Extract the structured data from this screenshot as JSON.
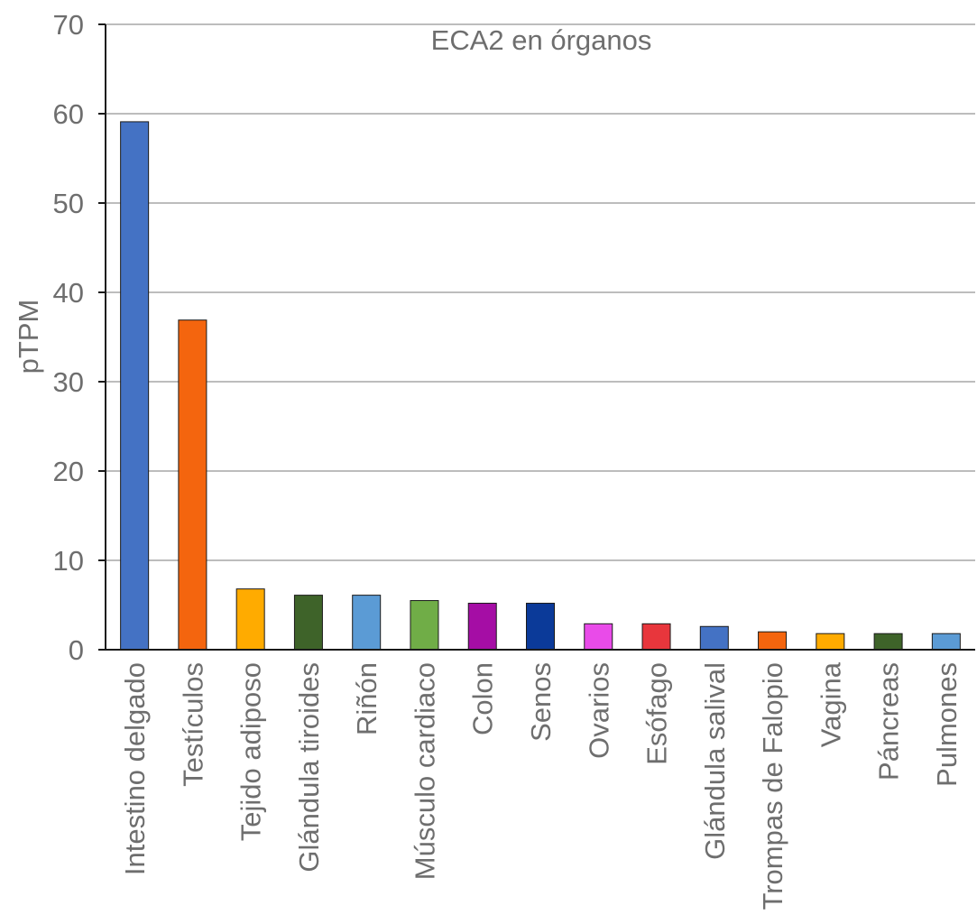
{
  "chart_data": {
    "type": "bar",
    "title": "ECA2 en órganos",
    "xlabel": "",
    "ylabel": "pTPM",
    "ylim": [
      0,
      70
    ],
    "yticks": [
      0,
      10,
      20,
      30,
      40,
      50,
      60,
      70
    ],
    "grid": true,
    "legend": "none",
    "categories": [
      "Intestino delgado",
      "Testículos",
      "Tejido adiposo",
      "Glándula tiroides",
      "Riñón",
      "Músculo cardiaco",
      "Colon",
      "Senos",
      "Ovarios",
      "Esófago",
      "Glándula salival",
      "Trompas de Falopio",
      "Vagina",
      "Páncreas",
      "Pulmones"
    ],
    "values": [
      59.1,
      36.9,
      6.8,
      6.1,
      6.1,
      5.5,
      5.2,
      5.2,
      2.9,
      2.9,
      2.6,
      2.0,
      1.8,
      1.8,
      1.8
    ],
    "colors": [
      "#4472c4",
      "#f4650e",
      "#ffab00",
      "#3e6329",
      "#5b9bd5",
      "#70ad47",
      "#a50da5",
      "#0b3a99",
      "#e94be9",
      "#e8363c",
      "#4472c4",
      "#f4650e",
      "#ffab00",
      "#3e6329",
      "#5b9bd5"
    ]
  }
}
